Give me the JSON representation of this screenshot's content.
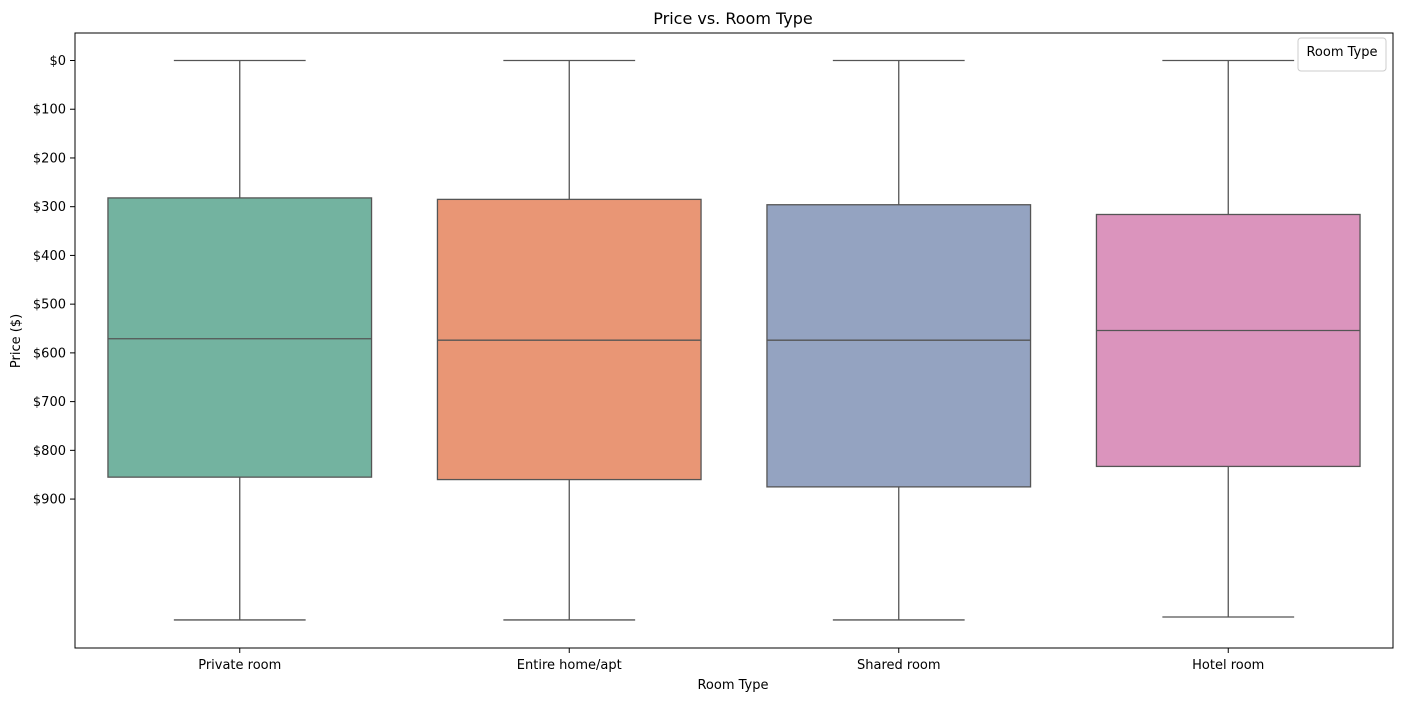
{
  "chart_data": {
    "type": "box",
    "title": "Price vs. Room Type",
    "xlabel": "Room Type",
    "ylabel": "Price ($)",
    "y_inverted": true,
    "ylim": [
      -60,
      1205
    ],
    "yticks": [
      0,
      100,
      200,
      300,
      400,
      500,
      600,
      700,
      800,
      900
    ],
    "ytick_labels": [
      "$0",
      "$100",
      "$200",
      "$300",
      "$400",
      "$500",
      "$600",
      "$700",
      "$800",
      "$900"
    ],
    "categories": [
      "Private room",
      "Entire home/apt",
      "Shared room",
      "Hotel room"
    ],
    "colors": [
      "#73b3a0",
      "#e99675",
      "#94a3c1",
      "#db94bd"
    ],
    "boxes": [
      {
        "category": "Private room",
        "whisker_low": 0,
        "q1": 282,
        "median": 571,
        "q3": 855,
        "whisker_high": 1148
      },
      {
        "category": "Entire home/apt",
        "whisker_low": 0,
        "q1": 285,
        "median": 574,
        "q3": 860,
        "whisker_high": 1148
      },
      {
        "category": "Shared room",
        "whisker_low": 0,
        "q1": 296,
        "median": 574,
        "q3": 875,
        "whisker_high": 1148
      },
      {
        "category": "Hotel room",
        "whisker_low": 0,
        "q1": 316,
        "median": 554,
        "q3": 833,
        "whisker_high": 1142
      }
    ],
    "legend": {
      "title": "Room Type",
      "position": "top-right"
    },
    "grid": false
  }
}
